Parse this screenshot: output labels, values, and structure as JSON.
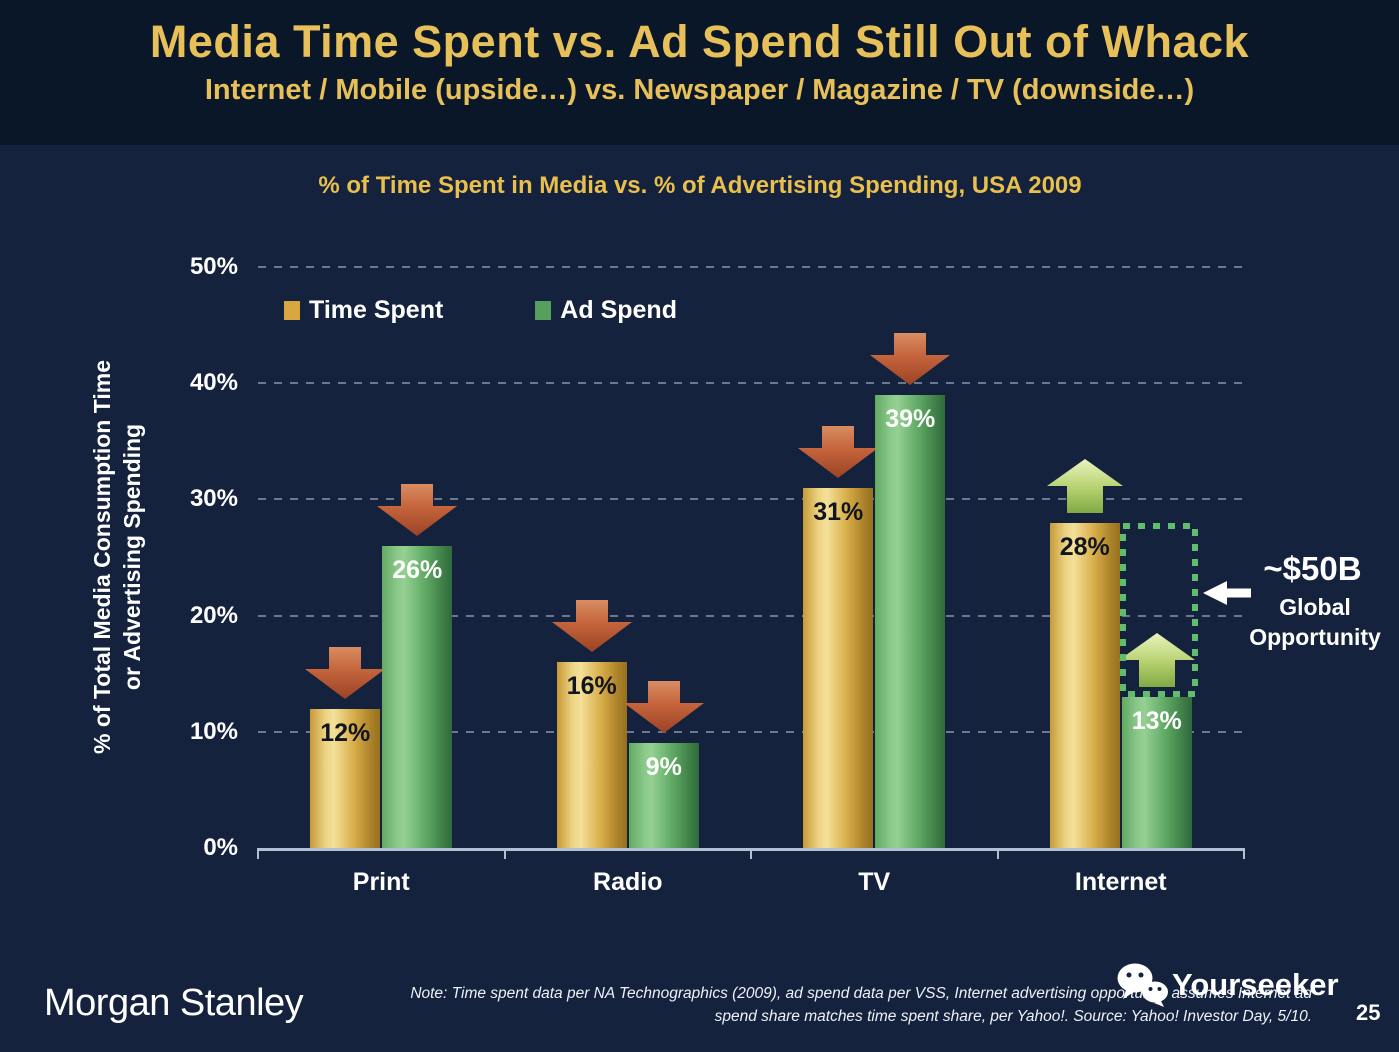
{
  "header": {
    "title": "Media Time Spent vs. Ad Spend Still Out of Whack",
    "subtitle": "Internet / Mobile (upside…) vs. Newspaper / Magazine / TV (downside…)"
  },
  "chart": {
    "title": "% of Time Spent in Media vs. % of Advertising Spending, USA 2009",
    "y_axis_title_line1": "% of Total Media Consumption Time",
    "y_axis_title_line2": "or Advertising Spending",
    "legend": [
      {
        "label": "Time Spent",
        "color": "#d9a73f"
      },
      {
        "label": "Ad Spend",
        "color": "#55a05f"
      }
    ]
  },
  "chart_data": {
    "type": "bar",
    "title": "% of Time Spent in Media vs. % of Advertising Spending, USA 2009",
    "categories": [
      "Print",
      "Radio",
      "TV",
      "Internet"
    ],
    "series": [
      {
        "name": "Time Spent",
        "values": [
          12,
          16,
          31,
          28
        ],
        "style": "gold",
        "label_color": "dark"
      },
      {
        "name": "Ad Spend",
        "values": [
          26,
          9,
          39,
          13
        ],
        "style": "green",
        "label_color": "white"
      }
    ],
    "data_labels": [
      [
        "12%",
        "26%"
      ],
      [
        "16%",
        "9%"
      ],
      [
        "31%",
        "39%"
      ],
      [
        "28%",
        "13%"
      ]
    ],
    "trend_arrows": [
      [
        "down",
        "down"
      ],
      [
        "down",
        "down"
      ],
      [
        "down",
        "down"
      ],
      [
        "up",
        "up"
      ]
    ],
    "y_ticks": [
      0,
      10,
      20,
      30,
      40,
      50
    ],
    "y_tick_labels": [
      "0%",
      "10%",
      "20%",
      "30%",
      "40%",
      "50%"
    ],
    "ylim": [
      0,
      50
    ],
    "ylabel": "% of Total Media Consumption Time or Advertising Spending",
    "grid": "dashed-horizontal",
    "legend_position": "upper-left"
  },
  "annotation": {
    "value": "~$50B",
    "label_line1": "Global",
    "label_line2": "Opportunity",
    "arrow": "left-arrow",
    "gap_rect": {
      "category": "Internet",
      "from_value": 28,
      "to_value": 13
    }
  },
  "footer": {
    "brand": "Morgan Stanley",
    "note_line1": "Note: Time spent data per NA Technographics (2009), ad spend data per VSS, Internet advertising opportunity assumes Internet ad",
    "note_line2": "spend share matches time spent share, per Yahoo!. Source: Yahoo! Investor Day, 5/10.",
    "watermark": "Yourseeker",
    "page_number": "25"
  },
  "colors": {
    "title_gold": "#e7c05a",
    "background_top": "#0a1728",
    "background_main": "#14223d",
    "bar_gold": "#d9a73f",
    "bar_green": "#55a05f",
    "arrow_down_red": "#b85535",
    "arrow_up_green": "#a9cc66",
    "gap_rect_green": "#5fbd6d",
    "axis_gray": "#b3bfd2",
    "text_white": "#ffffff"
  }
}
